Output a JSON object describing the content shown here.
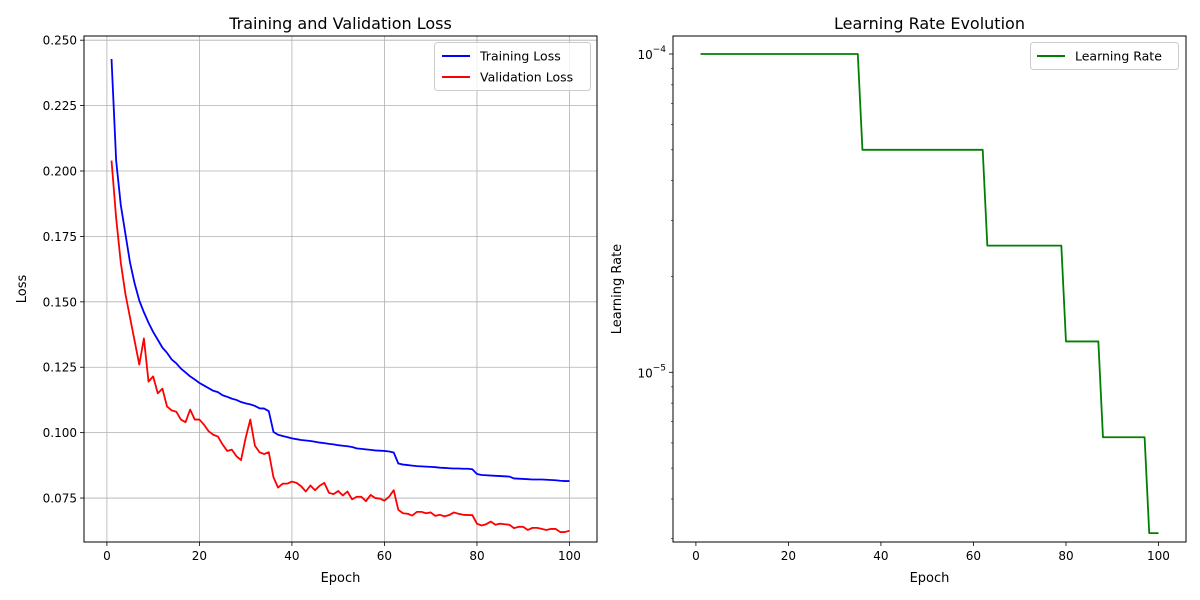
{
  "chart_data": [
    {
      "type": "line",
      "title": "Training and Validation Loss",
      "xlabel": "Epoch",
      "ylabel": "Loss",
      "xlim": [
        -4.95,
        105.95
      ],
      "ylim": [
        0.0582,
        0.2516
      ],
      "xticks": [
        0,
        20,
        40,
        60,
        80,
        100
      ],
      "yticks": [
        0.075,
        0.1,
        0.125,
        0.15,
        0.175,
        0.2,
        0.225,
        0.25
      ],
      "ytick_labels": [
        "0.075",
        "0.100",
        "0.125",
        "0.150",
        "0.175",
        "0.200",
        "0.225",
        "0.250"
      ],
      "grid": true,
      "legend_position": "top-right",
      "series": [
        {
          "name": "Training Loss",
          "color": "#0000ff",
          "x": [
            1,
            2,
            3,
            4,
            5,
            6,
            7,
            8,
            9,
            10,
            11,
            12,
            13,
            14,
            15,
            16,
            17,
            18,
            19,
            20,
            21,
            22,
            23,
            24,
            25,
            26,
            27,
            28,
            29,
            30,
            31,
            32,
            33,
            34,
            35,
            36,
            37,
            38,
            39,
            40,
            41,
            42,
            43,
            44,
            45,
            46,
            47,
            48,
            49,
            50,
            51,
            52,
            53,
            54,
            55,
            56,
            57,
            58,
            59,
            60,
            61,
            62,
            63,
            64,
            65,
            66,
            67,
            68,
            69,
            70,
            71,
            72,
            73,
            74,
            75,
            76,
            77,
            78,
            79,
            80,
            81,
            82,
            83,
            84,
            85,
            86,
            87,
            88,
            89,
            90,
            91,
            92,
            93,
            94,
            95,
            96,
            97,
            98,
            99,
            100
          ],
          "y": [
            0.2428,
            0.204,
            0.187,
            0.176,
            0.165,
            0.157,
            0.1505,
            0.146,
            0.142,
            0.1385,
            0.1355,
            0.1325,
            0.1305,
            0.128,
            0.1265,
            0.1245,
            0.123,
            0.1215,
            0.1203,
            0.119,
            0.118,
            0.117,
            0.116,
            0.1155,
            0.1143,
            0.1137,
            0.113,
            0.1125,
            0.1117,
            0.1112,
            0.1108,
            0.1102,
            0.1093,
            0.1092,
            0.1082,
            0.1003,
            0.0992,
            0.0987,
            0.0983,
            0.0978,
            0.0975,
            0.0972,
            0.097,
            0.0968,
            0.0965,
            0.0962,
            0.096,
            0.0957,
            0.0955,
            0.0952,
            0.095,
            0.0948,
            0.0945,
            0.094,
            0.0938,
            0.0936,
            0.0934,
            0.0932,
            0.0931,
            0.093,
            0.0928,
            0.0924,
            0.0882,
            0.0878,
            0.0876,
            0.0874,
            0.0872,
            0.0871,
            0.087,
            0.0869,
            0.0868,
            0.0866,
            0.0865,
            0.0864,
            0.0863,
            0.0863,
            0.0862,
            0.0862,
            0.086,
            0.0842,
            0.0838,
            0.0837,
            0.0836,
            0.0835,
            0.0834,
            0.0833,
            0.0832,
            0.0825,
            0.0824,
            0.0823,
            0.0822,
            0.0821,
            0.0821,
            0.0821,
            0.082,
            0.0819,
            0.0818,
            0.0816,
            0.0815,
            0.0815
          ]
        },
        {
          "name": "Validation Loss",
          "color": "#ff0000",
          "x": [
            1,
            2,
            3,
            4,
            5,
            6,
            7,
            8,
            9,
            10,
            11,
            12,
            13,
            14,
            15,
            16,
            17,
            18,
            19,
            20,
            21,
            22,
            23,
            24,
            25,
            26,
            27,
            28,
            29,
            30,
            31,
            32,
            33,
            34,
            35,
            36,
            37,
            38,
            39,
            40,
            41,
            42,
            43,
            44,
            45,
            46,
            47,
            48,
            49,
            50,
            51,
            52,
            53,
            54,
            55,
            56,
            57,
            58,
            59,
            60,
            61,
            62,
            63,
            64,
            65,
            66,
            67,
            68,
            69,
            70,
            71,
            72,
            73,
            74,
            75,
            76,
            77,
            78,
            79,
            80,
            81,
            82,
            83,
            84,
            85,
            86,
            87,
            88,
            89,
            90,
            91,
            92,
            93,
            94,
            95,
            96,
            97,
            98,
            99,
            100
          ],
          "y": [
            0.204,
            0.182,
            0.165,
            0.153,
            0.144,
            0.135,
            0.126,
            0.136,
            0.1195,
            0.1215,
            0.115,
            0.1168,
            0.11,
            0.1085,
            0.108,
            0.105,
            0.104,
            0.1088,
            0.105,
            0.105,
            0.103,
            0.1005,
            0.0992,
            0.0985,
            0.0955,
            0.093,
            0.0935,
            0.091,
            0.0895,
            0.098,
            0.105,
            0.095,
            0.0925,
            0.0918,
            0.0925,
            0.083,
            0.079,
            0.0805,
            0.0805,
            0.0813,
            0.0808,
            0.0795,
            0.0775,
            0.0798,
            0.078,
            0.0797,
            0.0808,
            0.077,
            0.0765,
            0.0777,
            0.076,
            0.0775,
            0.0745,
            0.0755,
            0.0755,
            0.0738,
            0.0762,
            0.075,
            0.0748,
            0.074,
            0.0755,
            0.078,
            0.0705,
            0.0692,
            0.069,
            0.0683,
            0.0697,
            0.0697,
            0.0692,
            0.0695,
            0.0682,
            0.0686,
            0.068,
            0.0685,
            0.0695,
            0.069,
            0.0686,
            0.0685,
            0.0685,
            0.0652,
            0.0645,
            0.065,
            0.066,
            0.0648,
            0.0652,
            0.065,
            0.0648,
            0.0635,
            0.064,
            0.064,
            0.0628,
            0.0636,
            0.0636,
            0.0632,
            0.0628,
            0.0632,
            0.0632,
            0.062,
            0.062,
            0.0625
          ]
        }
      ]
    },
    {
      "type": "line",
      "title": "Learning Rate Evolution",
      "xlabel": "Epoch",
      "ylabel": "Learning Rate",
      "yscale": "log",
      "xlim": [
        -4.95,
        105.95
      ],
      "ylim": [
        2.93e-06,
        0.0001139
      ],
      "xticks": [
        0,
        20,
        40,
        60,
        80,
        100
      ],
      "major_yticks": [
        1e-05,
        0.0001
      ],
      "major_ytick_labels": [
        {
          "base": "10",
          "exp": "−5"
        },
        {
          "base": "10",
          "exp": "−4"
        }
      ],
      "minor_yticks": [
        3e-06,
        4e-06,
        5e-06,
        6e-06,
        7e-06,
        8e-06,
        9e-06,
        2e-05,
        3e-05,
        4e-05,
        5e-05,
        6e-05,
        7e-05,
        8e-05,
        9e-05
      ],
      "grid": false,
      "legend_position": "top-right",
      "series": [
        {
          "name": "Learning Rate",
          "color": "#008000",
          "x": [
            1,
            35,
            36,
            62,
            63,
            79,
            80,
            87,
            88,
            97,
            98,
            100
          ],
          "y": [
            0.0001,
            0.0001,
            5e-05,
            5e-05,
            2.5e-05,
            2.5e-05,
            1.25e-05,
            1.25e-05,
            6.25e-06,
            6.25e-06,
            3.125e-06,
            3.125e-06
          ]
        }
      ]
    }
  ]
}
